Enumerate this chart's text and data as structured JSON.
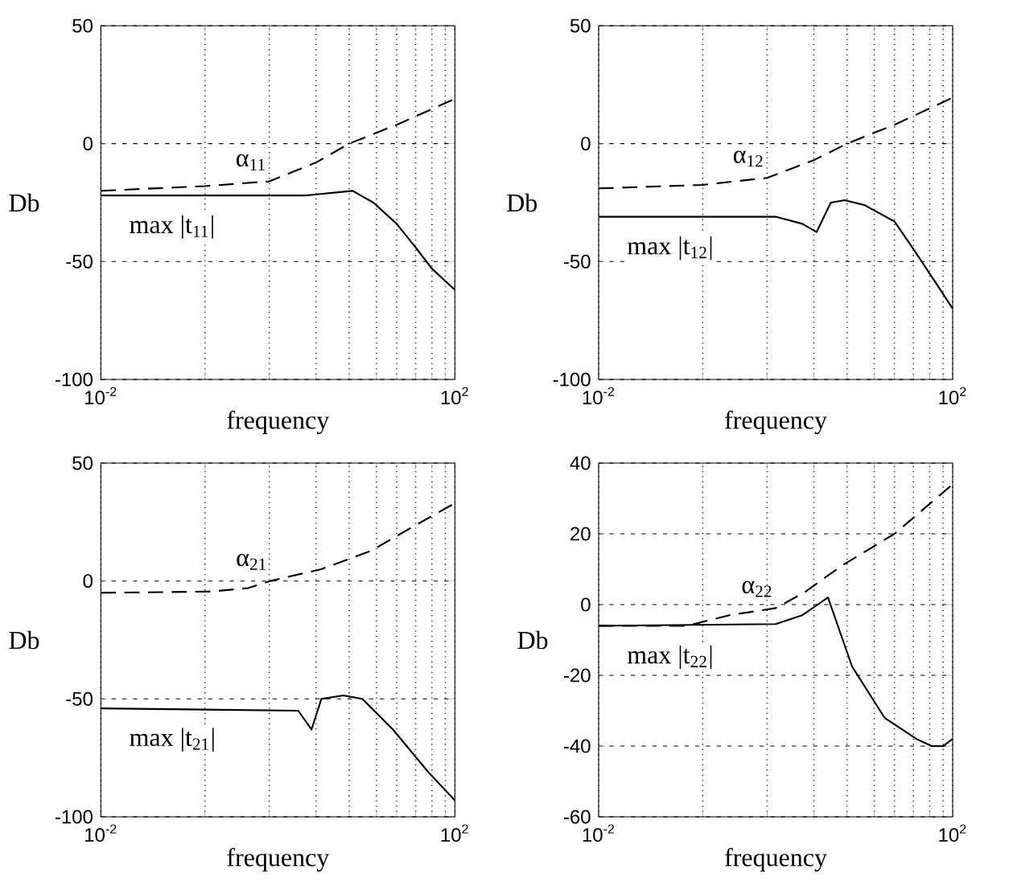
{
  "chart_data": [
    {
      "type": "line",
      "log": "x",
      "xlabel": "frequency",
      "ylabel": "Db",
      "grid": true,
      "xlim": [
        0.01,
        100
      ],
      "ylim": [
        -100,
        50
      ],
      "xticks": [
        {
          "value": 0.01,
          "label": "10$^{-2}$"
        },
        {
          "value": 0.15,
          "label": null
        },
        {
          "value": 0.8,
          "label": null
        },
        {
          "value": 2.7,
          "label": null
        },
        {
          "value": 6.4,
          "label": null
        },
        {
          "value": 13,
          "label": null
        },
        {
          "value": 22,
          "label": null
        },
        {
          "value": 36,
          "label": null
        },
        {
          "value": 55,
          "label": null
        },
        {
          "value": 78,
          "label": null
        },
        {
          "value": 100,
          "label": "10$^{2}$"
        }
      ],
      "yticks": [
        -100,
        -50,
        0,
        50
      ],
      "series": [
        {
          "name": "α$_{11}$",
          "color": "#000000",
          "line_style": "dashed",
          "x": [
            0.01,
            0.15,
            0.8,
            2.7,
            6.4,
            22,
            100
          ],
          "values": [
            -20,
            -18,
            -16,
            -8,
            0,
            8,
            19
          ]
        },
        {
          "name": "max |t$_{11}$|",
          "color": "#000000",
          "line_style": "solid",
          "x": [
            0.01,
            2,
            7,
            12,
            22,
            36,
            55,
            100
          ],
          "values": [
            -22,
            -22,
            -20,
            -25,
            -34,
            -44,
            -53,
            -62
          ]
        }
      ]
    },
    {
      "type": "line",
      "log": "x",
      "xlabel": "frequency",
      "ylabel": "Db",
      "grid": true,
      "xlim": [
        0.01,
        100
      ],
      "ylim": [
        -100,
        50
      ],
      "xticks": [
        {
          "value": 0.01,
          "label": "10$^{-2}$"
        },
        {
          "value": 0.15,
          "label": null
        },
        {
          "value": 0.8,
          "label": null
        },
        {
          "value": 2.7,
          "label": null
        },
        {
          "value": 6.4,
          "label": null
        },
        {
          "value": 13,
          "label": null
        },
        {
          "value": 22,
          "label": null
        },
        {
          "value": 36,
          "label": null
        },
        {
          "value": 55,
          "label": null
        },
        {
          "value": 78,
          "label": null
        },
        {
          "value": 100,
          "label": "10$^{2}$"
        }
      ],
      "yticks": [
        -100,
        -50,
        0,
        50
      ],
      "series": [
        {
          "name": "α$_{12}$",
          "color": "#000000",
          "line_style": "dashed",
          "x": [
            0.01,
            0.15,
            0.8,
            2.7,
            6.4,
            22,
            100
          ],
          "values": [
            -19,
            -17.5,
            -14.5,
            -7,
            0,
            8,
            19.5
          ]
        },
        {
          "name": "max |t$_{12}$|",
          "color": "#000000",
          "line_style": "solid",
          "x": [
            0.01,
            1,
            2,
            2.9,
            4.2,
            6,
            10,
            22,
            38,
            67,
            100
          ],
          "values": [
            -31,
            -31,
            -34,
            -37.5,
            -25,
            -24,
            -26,
            -33,
            -46,
            -60,
            -70
          ]
        }
      ]
    },
    {
      "type": "line",
      "log": "x",
      "xlabel": "frequency",
      "ylabel": "Db",
      "grid": true,
      "xlim": [
        0.01,
        100
      ],
      "ylim": [
        -100,
        50
      ],
      "xticks": [
        {
          "value": 0.01,
          "label": "10$^{-2}$"
        },
        {
          "value": 0.15,
          "label": null
        },
        {
          "value": 0.8,
          "label": null
        },
        {
          "value": 2.7,
          "label": null
        },
        {
          "value": 6.4,
          "label": null
        },
        {
          "value": 13,
          "label": null
        },
        {
          "value": 22,
          "label": null
        },
        {
          "value": 36,
          "label": null
        },
        {
          "value": 55,
          "label": null
        },
        {
          "value": 78,
          "label": null
        },
        {
          "value": 100,
          "label": "10$^{2}$"
        }
      ],
      "yticks": [
        -100,
        -50,
        0,
        50
      ],
      "series": [
        {
          "name": "α$_{21}$",
          "color": "#000000",
          "line_style": "dashed",
          "x": [
            0.01,
            0.17,
            0.46,
            0.82,
            3.1,
            11.6,
            27,
            100
          ],
          "values": [
            -5,
            -4.5,
            -3,
            0,
            5,
            13,
            21,
            33
          ]
        },
        {
          "name": "max |t$_{21}$|",
          "color": "#000000",
          "line_style": "solid",
          "x": [
            0.01,
            1.7,
            2.4,
            3.1,
            5.5,
            9,
            20,
            50,
            100
          ],
          "values": [
            -54,
            -55,
            -63,
            -50,
            -48.5,
            -50,
            -63,
            -81,
            -93
          ]
        }
      ]
    },
    {
      "type": "line",
      "log": "x",
      "xlabel": "frequency",
      "ylabel": "Db",
      "grid": true,
      "xlim": [
        0.01,
        100
      ],
      "ylim": [
        -60,
        40
      ],
      "xticks": [
        {
          "value": 0.01,
          "label": "10$^{-2}$"
        },
        {
          "value": 0.15,
          "label": null
        },
        {
          "value": 0.8,
          "label": null
        },
        {
          "value": 2.7,
          "label": null
        },
        {
          "value": 6.4,
          "label": null
        },
        {
          "value": 13,
          "label": null
        },
        {
          "value": 22,
          "label": null
        },
        {
          "value": 36,
          "label": null
        },
        {
          "value": 55,
          "label": null
        },
        {
          "value": 78,
          "label": null
        },
        {
          "value": 100,
          "label": "10$^{2}$"
        }
      ],
      "yticks": [
        -60,
        -40,
        -20,
        0,
        20,
        40
      ],
      "series": [
        {
          "name": "α$_{22}$",
          "color": "#000000",
          "line_style": "dashed",
          "x": [
            0.01,
            0.1,
            0.3,
            1,
            2.1,
            5.6,
            22,
            100
          ],
          "values": [
            -6,
            -6,
            -3,
            -1,
            3.4,
            11,
            20,
            34
          ]
        },
        {
          "name": "max |t$_{22}$|",
          "color": "#000000",
          "line_style": "solid",
          "x": [
            0.01,
            1,
            2,
            3.9,
            7.3,
            17,
            39,
            58,
            78,
            100
          ],
          "values": [
            -6,
            -5.5,
            -3,
            2,
            -17.5,
            -32,
            -38,
            -40,
            -40,
            -38
          ]
        }
      ]
    }
  ]
}
